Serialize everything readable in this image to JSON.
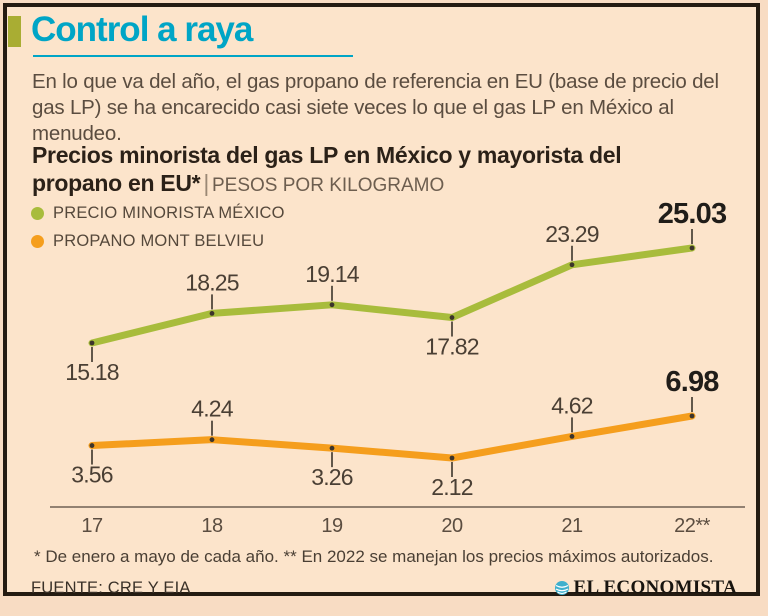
{
  "colors": {
    "background": "#fce4cb",
    "page_bg": "#f8dcc3",
    "frame_border": "#241b11",
    "accent_cyan": "#00a5c6",
    "olive_accent": "#a9ad33",
    "green_line": "#a8bc3c",
    "orange_line": "#f59e1d",
    "text_dark": "#2b2118",
    "text_body": "#5b4d40",
    "label_text": "#4a3f34",
    "value_bold": "#201d19",
    "axis_line": "#6e6054",
    "tick_line": "#3c342b",
    "logo_teal": "#3fb0cd",
    "logo_dark": "#18140f"
  },
  "header": {
    "title": "Control a raya",
    "intro": "En lo que va del año, el gas propano de referencia en EU (base de precio del gas LP) se ha encarecido casi siete veces lo que el gas LP en México al menudeo."
  },
  "chart_header": {
    "title_bold": "Precios minorista del gas LP en México y mayorista del propano en EU*",
    "separator": "|",
    "unit_label": "PESOS POR KILOGRAMO"
  },
  "legend": {
    "position": "top-left",
    "items": [
      {
        "label": "PRECIO MINORISTA MÉXICO",
        "color": "#a8bc3c"
      },
      {
        "label": "PROPANO MONT BELVIEU",
        "color": "#f59e1d"
      }
    ]
  },
  "chart_data": {
    "type": "line",
    "title": "Precios minorista del gas LP en México y mayorista del propano en EU*",
    "ylabel": "Pesos por kilogramo",
    "xlabel": "",
    "grid": false,
    "legend_position": "top-left",
    "x": [
      "17",
      "18",
      "19",
      "20",
      "21",
      "22**"
    ],
    "series": [
      {
        "name": "PRECIO MINORISTA MÉXICO",
        "color": "#a8bc3c",
        "values": [
          15.18,
          18.25,
          19.14,
          17.82,
          23.29,
          25.03
        ],
        "label_positions": [
          "below",
          "above",
          "above",
          "below",
          "above",
          "above"
        ]
      },
      {
        "name": "PROPANO MONT BELVIEU",
        "color": "#f59e1d",
        "values": [
          3.56,
          4.24,
          3.26,
          2.12,
          4.62,
          6.98
        ],
        "label_positions": [
          "below",
          "above",
          "below",
          "below",
          "above",
          "above"
        ]
      }
    ],
    "emphasize_last_value": true
  },
  "footnote": "* De enero a mayo de cada año. ** En 2022 se manejan los precios máximos autorizados.",
  "source": "FUENTE: CRE Y EIA",
  "logo": {
    "name": "EL ECONOMISTA"
  }
}
